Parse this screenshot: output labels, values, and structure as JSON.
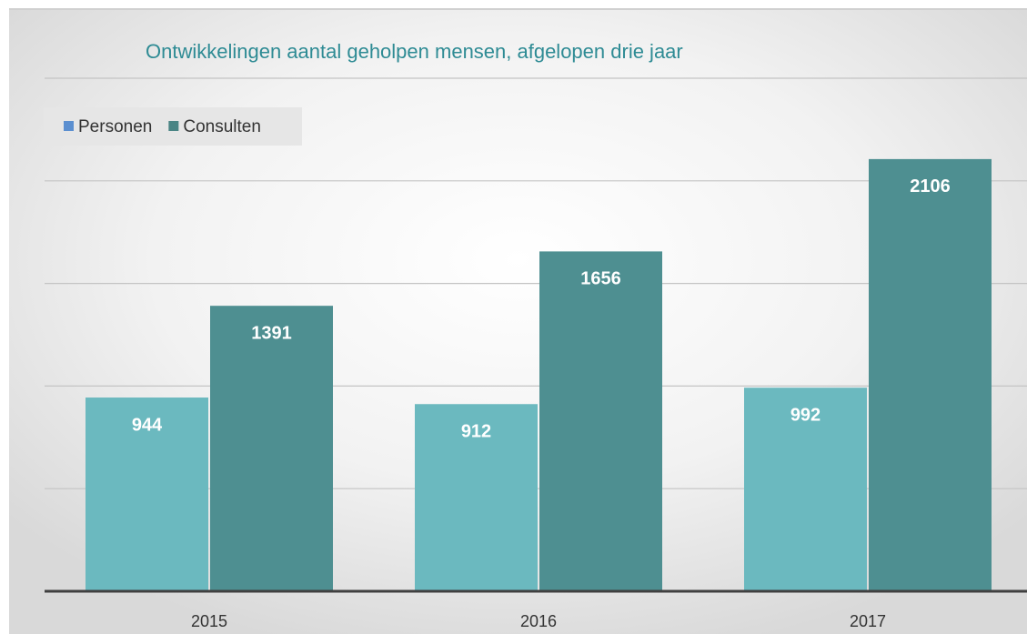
{
  "chart_data": {
    "type": "bar",
    "title": "Ontwikkelingen aantal geholpen mensen, afgelopen drie jaar",
    "categories": [
      "2015",
      "2016",
      "2017"
    ],
    "series": [
      {
        "name": "Personen",
        "color": "#6bb9bf",
        "legend_color": "#5b8fd0",
        "values": [
          944,
          912,
          992
        ]
      },
      {
        "name": "Consulten",
        "color": "#4e8f91",
        "legend_color": "#4a8585",
        "values": [
          1391,
          1656,
          2106
        ]
      }
    ],
    "ylim": [
      0,
      2500
    ],
    "yticks": [
      0,
      500,
      1000,
      1500,
      2000,
      2500
    ],
    "grid": true,
    "legend": "top-left"
  }
}
